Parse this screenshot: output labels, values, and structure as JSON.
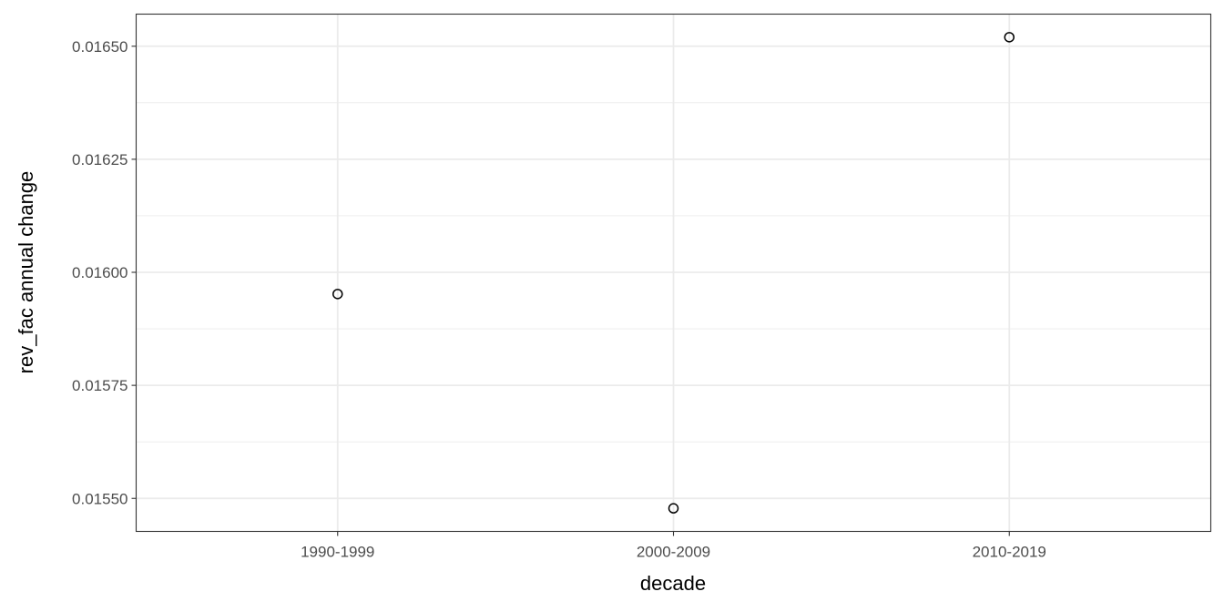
{
  "chart_data": {
    "type": "scatter",
    "title": "",
    "xlabel": "decade",
    "ylabel": "rev_fac annual change",
    "categories": [
      "1990-1999",
      "2000-2009",
      "2010-2019"
    ],
    "values": [
      0.015952,
      0.015478,
      0.01652
    ],
    "yticks": [
      0.0155,
      0.01575,
      0.016,
      0.01625,
      0.0165
    ],
    "ytick_labels": [
      "0.01550",
      "0.01575",
      "0.01600",
      "0.01625",
      "0.01650"
    ],
    "ylim": [
      0.015427,
      0.016571
    ],
    "grid": true,
    "theme": "bw",
    "marker": "open-circle",
    "colors": {
      "point": "#000000",
      "grid": "#ebebeb",
      "border": "#333333"
    }
  }
}
